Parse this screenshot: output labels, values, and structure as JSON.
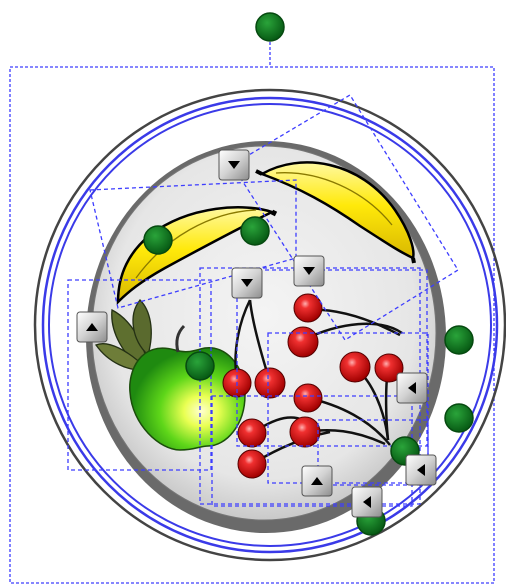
{
  "canvas": {
    "description_free": true
  },
  "artwork": {
    "objects": [
      {
        "name": "plate",
        "icon": "plate"
      },
      {
        "name": "banana-left",
        "icon": "banana"
      },
      {
        "name": "banana-right",
        "icon": "banana"
      },
      {
        "name": "apple",
        "icon": "apple"
      },
      {
        "name": "cherries",
        "icon": "cherry"
      }
    ]
  },
  "colors": {
    "selection_outline": "#3d3dff",
    "rotation_handle": "#0b6b1c",
    "button_face": "#d9d9d9",
    "plate_ring": "#3a3ae8"
  },
  "handles": {
    "arrow_up": "arrow-up-icon",
    "arrow_down": "arrow-down-icon",
    "arrow_left": "arrow-left-icon"
  }
}
